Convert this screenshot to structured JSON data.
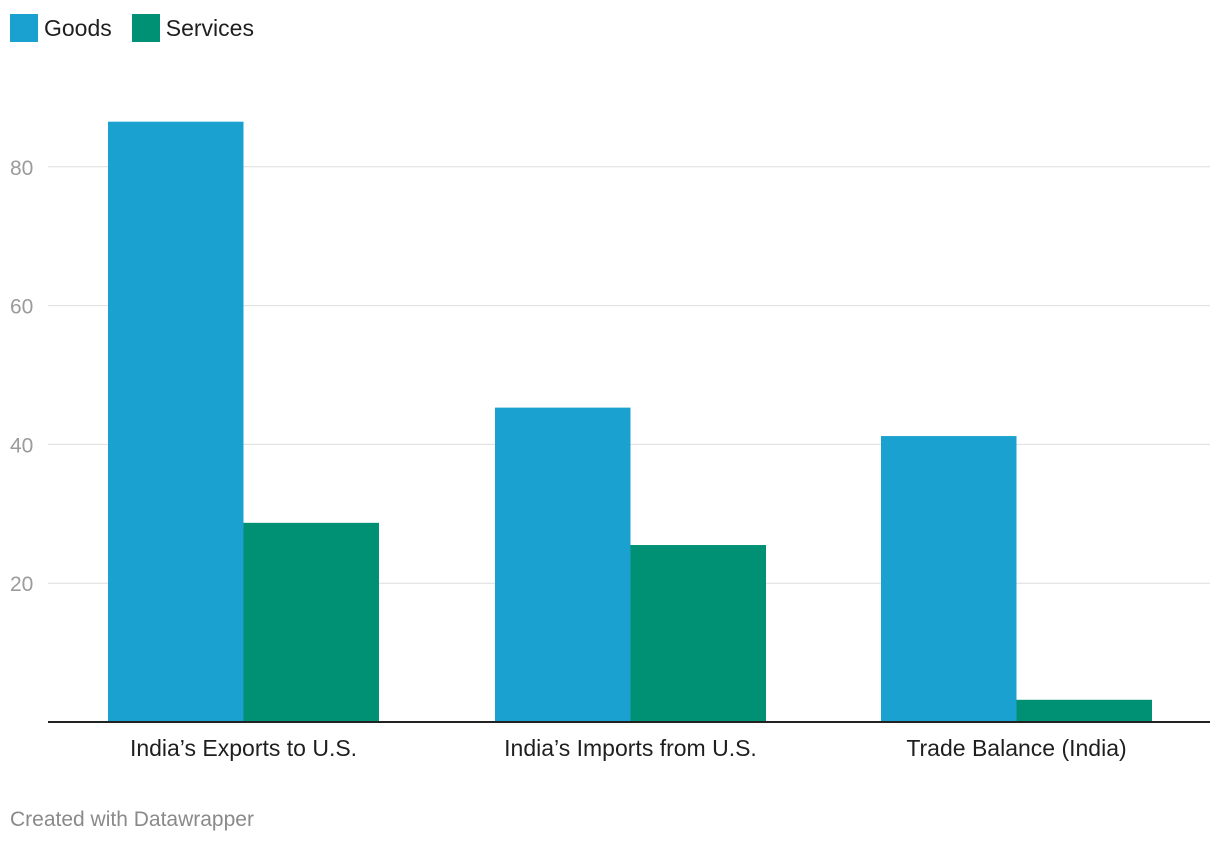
{
  "chart_data": {
    "type": "bar",
    "categories": [
      "India’s Exports to U.S.",
      "India’s Imports from U.S.",
      "Trade Balance (India)"
    ],
    "series": [
      {
        "name": "Goods",
        "values": [
          86.5,
          45.3,
          41.2
        ],
        "color": "#1ba1cf"
      },
      {
        "name": "Services",
        "values": [
          28.7,
          25.5,
          3.2
        ],
        "color": "#009073"
      }
    ],
    "y_ticks": [
      "20",
      "40",
      "60",
      "80"
    ],
    "ylim": [
      0,
      95
    ],
    "grid": true,
    "legend_position": "top-left"
  },
  "footer": {
    "credit": "Created with Datawrapper"
  }
}
